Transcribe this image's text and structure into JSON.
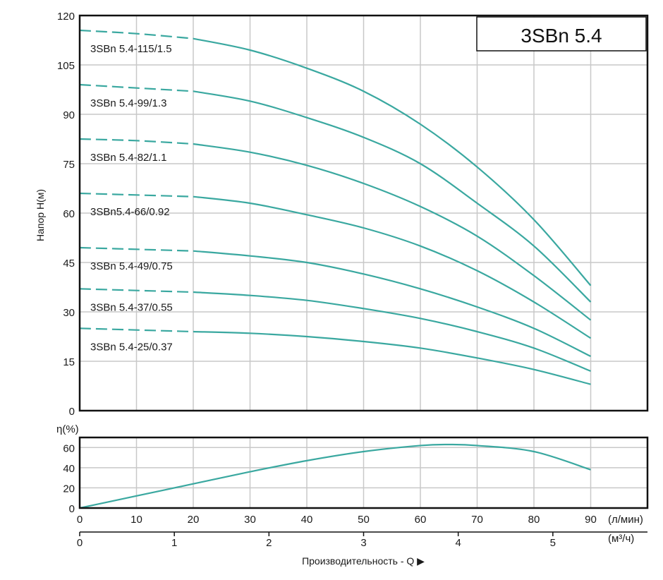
{
  "colors": {
    "curve": "#3aa8a0",
    "grid": "#c8c8c8",
    "frame": "#111111"
  },
  "title": "3SBn 5.4",
  "head_chart": {
    "ylabel": "Напор H(м)",
    "ylim": [
      0,
      120
    ],
    "yticks": [
      "0",
      "15",
      "30",
      "45",
      "60",
      "75",
      "90",
      "105",
      "120"
    ]
  },
  "eff_chart": {
    "ylabel": "η(%)",
    "ylim": [
      0,
      70
    ],
    "yticks": [
      "0",
      "20",
      "40",
      "60"
    ]
  },
  "x_axis_lmin": {
    "unit": "(л/мин)",
    "ticks": [
      "0",
      "10",
      "20",
      "30",
      "40",
      "50",
      "60",
      "70",
      "80",
      "90"
    ]
  },
  "x_axis_m3h": {
    "unit": "(м³/ч)",
    "ticks": [
      "0",
      "1",
      "2",
      "3",
      "4",
      "5"
    ]
  },
  "xlabel": "Производительность - Q ▶",
  "chart_data": [
    {
      "type": "line",
      "title": "3SBn 5.4",
      "ylabel": "Напор H(м)",
      "xlabel": "Производительность - Q",
      "x_unit": "л/мин",
      "xlim": [
        0,
        100
      ],
      "ylim": [
        0,
        120
      ],
      "grid": true,
      "dashed_until_x": 20,
      "series": [
        {
          "name": "3SBn 5.4-115/1.5",
          "x": [
            0,
            10,
            20,
            30,
            40,
            50,
            60,
            70,
            80,
            90
          ],
          "y": [
            115.5,
            114.5,
            113,
            109.5,
            104,
            97,
            87,
            74,
            58,
            38
          ]
        },
        {
          "name": "3SBn 5.4-99/1.3",
          "x": [
            0,
            10,
            20,
            30,
            40,
            50,
            60,
            70,
            80,
            90
          ],
          "y": [
            99,
            98,
            97,
            94,
            89,
            83,
            75,
            63,
            50,
            33
          ]
        },
        {
          "name": "3SBn 5.4-82/1.1",
          "x": [
            0,
            10,
            20,
            30,
            40,
            50,
            60,
            70,
            80,
            90
          ],
          "y": [
            82.5,
            82,
            81,
            78.5,
            74.5,
            69,
            62,
            53,
            41,
            27.5
          ]
        },
        {
          "name": "3SBn5.4-66/0.92",
          "x": [
            0,
            10,
            20,
            30,
            40,
            50,
            60,
            70,
            80,
            90
          ],
          "y": [
            66,
            65.5,
            65,
            63,
            59.5,
            55.5,
            50,
            42.5,
            33,
            22
          ]
        },
        {
          "name": "3SBn 5.4-49/0.75",
          "x": [
            0,
            10,
            20,
            30,
            40,
            50,
            60,
            70,
            80,
            90
          ],
          "y": [
            49.5,
            49,
            48.5,
            47,
            45,
            41.5,
            37,
            31.5,
            25,
            16.5
          ]
        },
        {
          "name": "3SBn 5.4-37/0.55",
          "x": [
            0,
            10,
            20,
            30,
            40,
            50,
            60,
            70,
            80,
            90
          ],
          "y": [
            37,
            36.5,
            36,
            35,
            33.5,
            31,
            28,
            24,
            19,
            12
          ]
        },
        {
          "name": "3SBn 5.4-25/0.37",
          "x": [
            0,
            10,
            20,
            30,
            40,
            50,
            60,
            70,
            80,
            90
          ],
          "y": [
            25,
            24.5,
            24,
            23.5,
            22.5,
            21,
            19,
            16,
            12.5,
            8
          ]
        }
      ]
    },
    {
      "type": "line",
      "ylabel": "η(%)",
      "x_unit": "л/мин",
      "xlim": [
        0,
        100
      ],
      "ylim": [
        0,
        70
      ],
      "grid": true,
      "series": [
        {
          "x": [
            0,
            10,
            20,
            30,
            40,
            50,
            60,
            65,
            70,
            80,
            90
          ],
          "y": [
            0,
            12,
            24,
            36,
            47,
            56,
            62,
            63,
            62,
            56,
            38
          ]
        }
      ]
    }
  ]
}
